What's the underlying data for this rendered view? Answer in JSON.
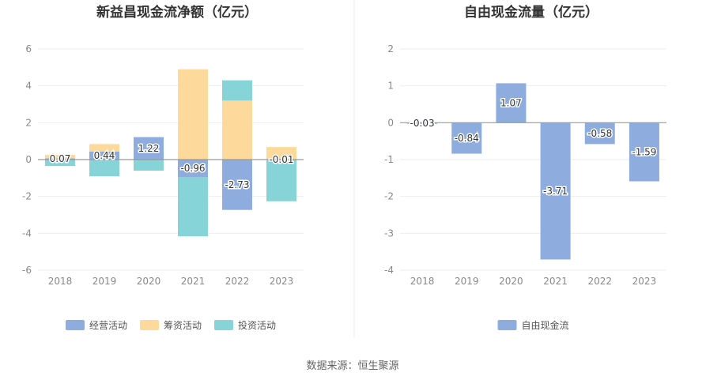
{
  "source_text": "数据来源：恒生聚源",
  "chart_data": [
    {
      "type": "bar",
      "stacked": true,
      "title": "新益昌现金流净额（亿元）",
      "categories": [
        "2018",
        "2019",
        "2020",
        "2021",
        "2022",
        "2023"
      ],
      "ylim": [
        -6,
        6
      ],
      "yticks": [
        6,
        4,
        2,
        0,
        -2,
        -4,
        -6
      ],
      "grid": true,
      "legend_position": "bottom",
      "series": [
        {
          "name": "经营活动",
          "color": "#8eadde",
          "values": [
            0.07,
            0.44,
            1.22,
            -0.96,
            -2.73,
            -0.01
          ]
        },
        {
          "name": "筹资活动",
          "color": "#fdd99b",
          "values": [
            0.18,
            0.4,
            0.0,
            4.9,
            3.2,
            0.68
          ]
        },
        {
          "name": "投资活动",
          "color": "#86d3d8",
          "values": [
            -0.35,
            -0.9,
            -0.6,
            -3.2,
            1.1,
            -2.25
          ]
        }
      ],
      "data_labels": [
        "0.07",
        "0.44",
        "1.22",
        "-0.96",
        "-2.73",
        "-0.01"
      ]
    },
    {
      "type": "bar",
      "title": "自由现金流量（亿元）",
      "categories": [
        "2018",
        "2019",
        "2020",
        "2021",
        "2022",
        "2023"
      ],
      "ylim": [
        -4,
        2
      ],
      "yticks": [
        2,
        1,
        0,
        -1,
        -2,
        -3,
        -4
      ],
      "grid": true,
      "legend_position": "bottom",
      "series": [
        {
          "name": "自由现金流",
          "color": "#8eadde",
          "values": [
            -0.03,
            -0.84,
            1.07,
            -3.71,
            -0.58,
            -1.59
          ]
        }
      ],
      "data_labels": [
        "-0.03",
        "-0.84",
        "1.07",
        "-3.71",
        "-0.58",
        "-1.59"
      ]
    }
  ]
}
